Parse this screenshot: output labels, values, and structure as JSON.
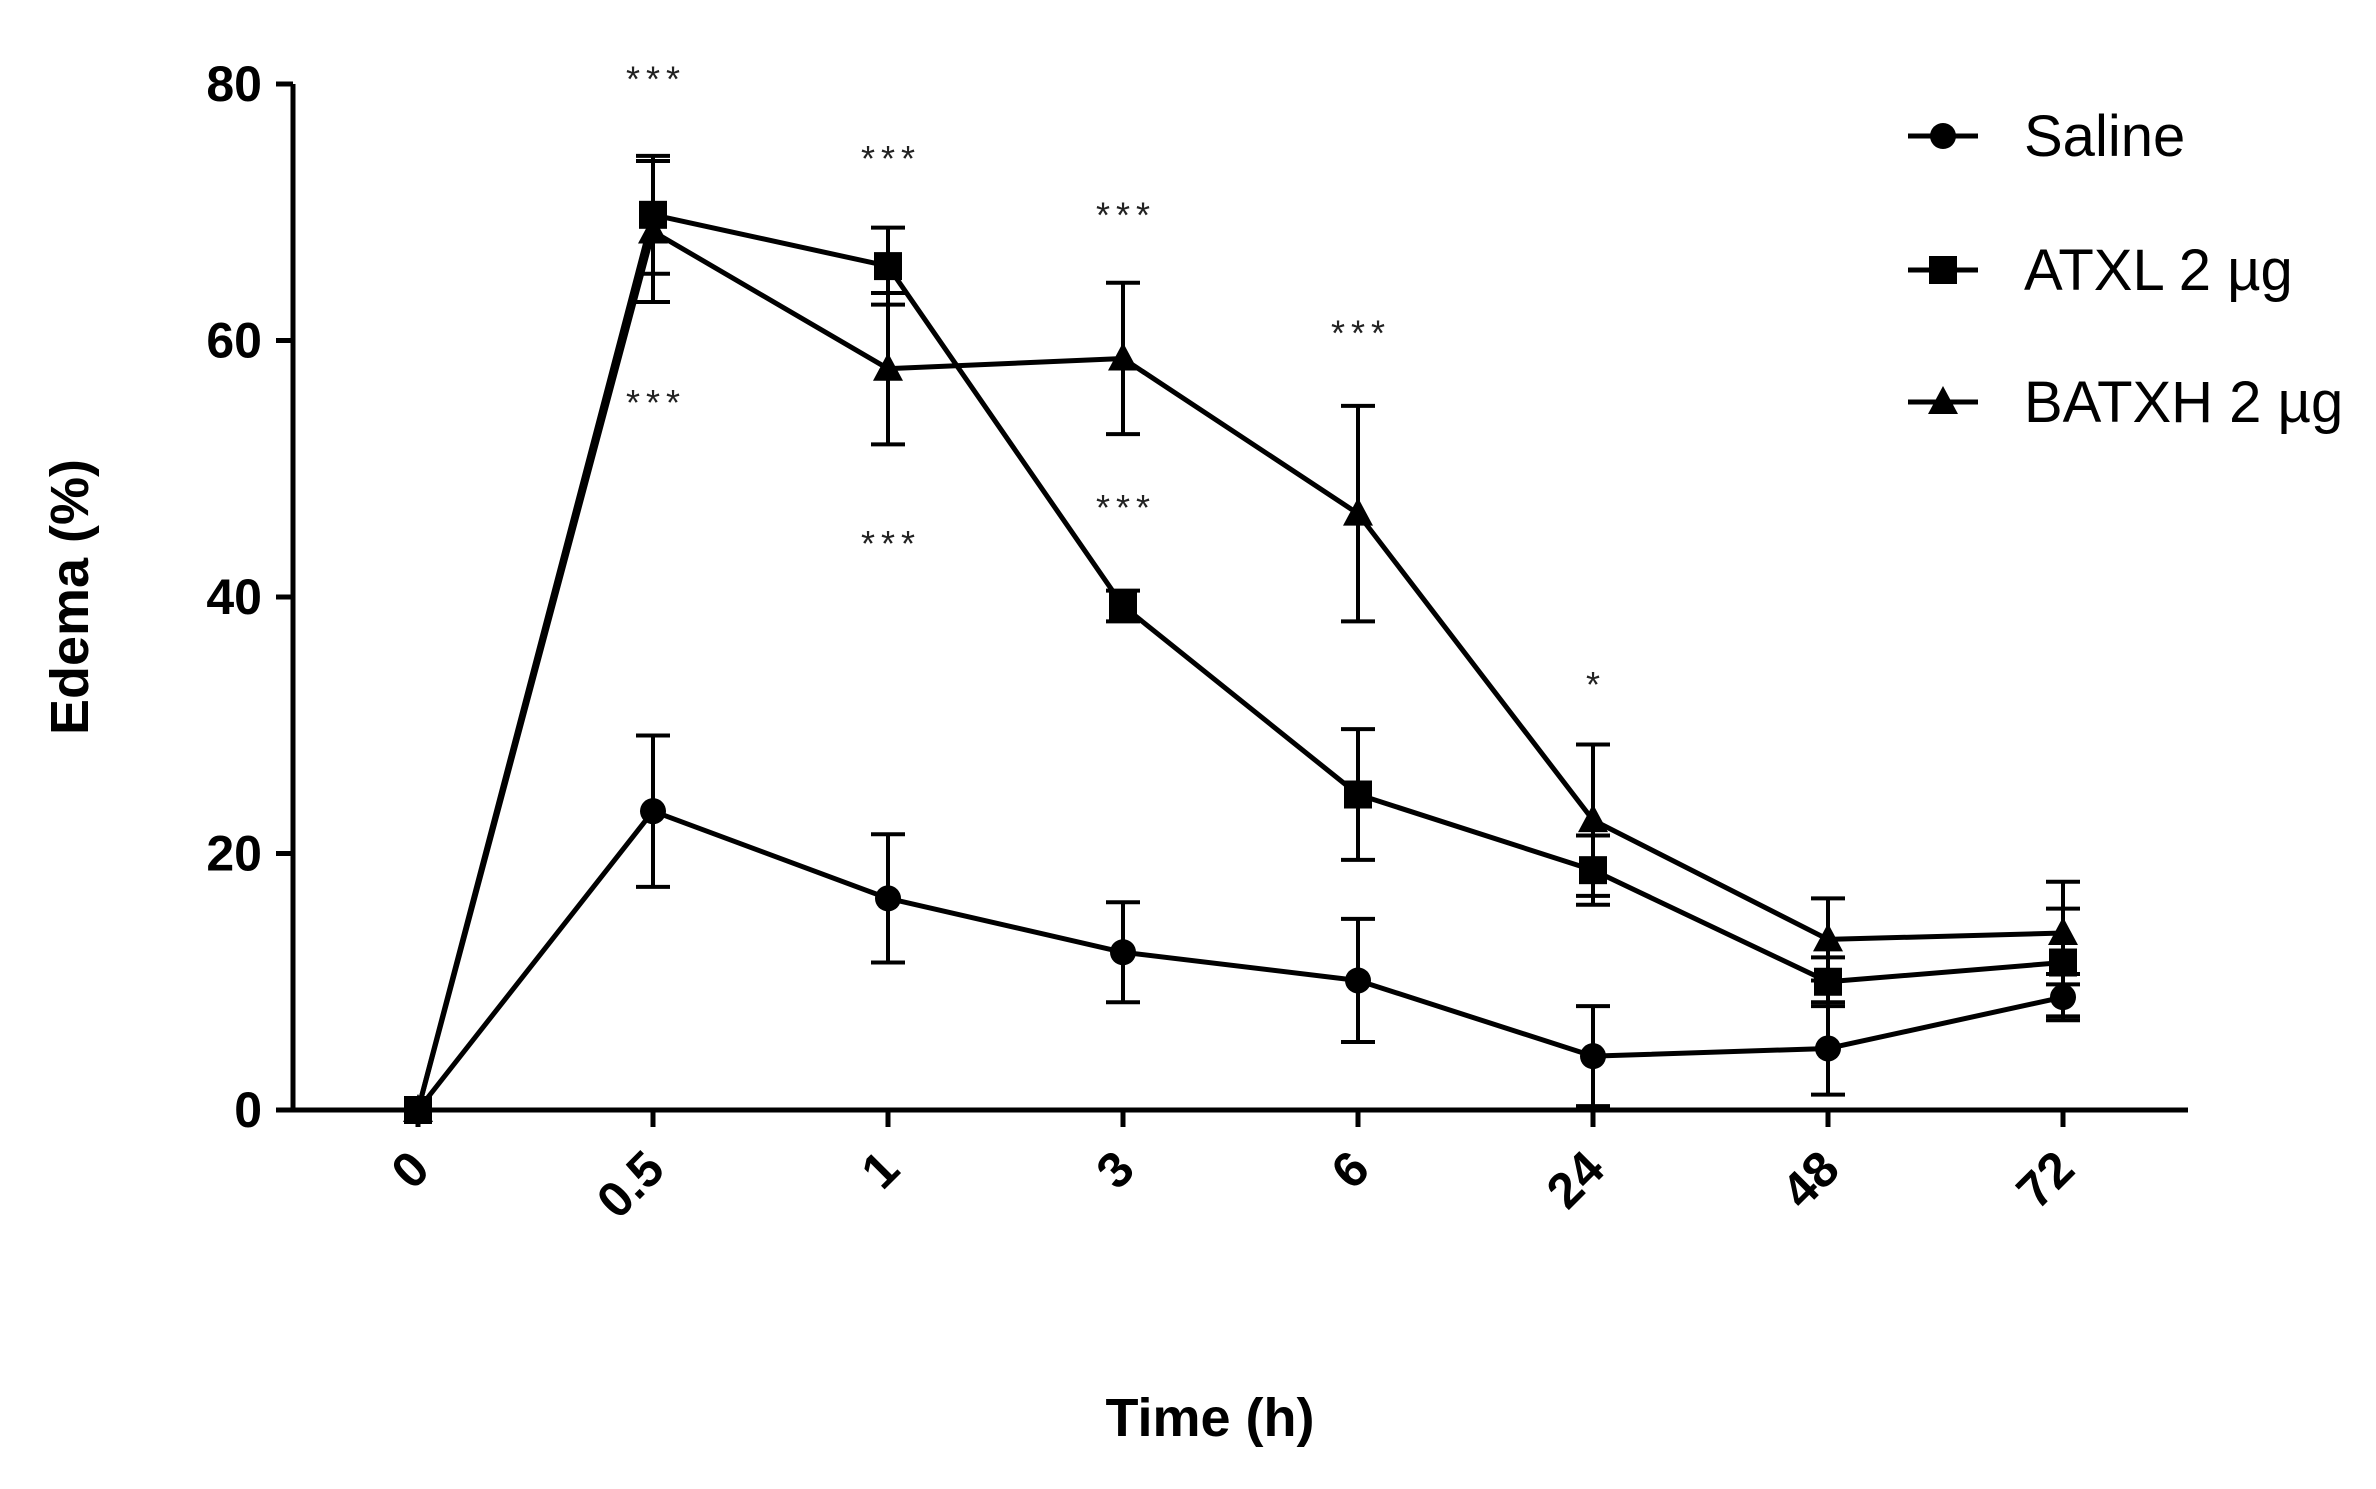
{
  "chart_data": {
    "type": "line",
    "title": "",
    "xlabel": "Time (h)",
    "ylabel": "Edema (%)",
    "categories": [
      "0",
      "0.5",
      "1",
      "3",
      "6",
      "24",
      "48",
      "72"
    ],
    "ylim": [
      0,
      80
    ],
    "yticks": [
      0,
      20,
      40,
      60,
      80
    ],
    "grid": false,
    "legend_position": "top-right",
    "series": [
      {
        "name": "Saline",
        "marker": "circle",
        "values": [
          0,
          23.3,
          16.5,
          12.3,
          10.1,
          4.2,
          4.8,
          8.8
        ],
        "errors": [
          0,
          5.9,
          5.0,
          3.9,
          4.8,
          3.9,
          3.6,
          1.8
        ]
      },
      {
        "name": "ATXL 2 µg",
        "marker": "square",
        "values": [
          0,
          69.8,
          65.8,
          39.3,
          24.6,
          18.7,
          10.0,
          11.5
        ],
        "errors": [
          0,
          4.6,
          3.0,
          1.2,
          5.1,
          2.7,
          1.9,
          4.2
        ]
      },
      {
        "name": "BATXH 2 µg",
        "marker": "triangle",
        "values": [
          0,
          68.5,
          57.8,
          58.6,
          46.5,
          22.6,
          13.3,
          13.8
        ],
        "errors": [
          0,
          5.5,
          5.9,
          5.9,
          8.4,
          5.9,
          3.2,
          4.0
        ]
      }
    ],
    "annotations": [
      {
        "text": "***",
        "category": "0.5",
        "y": 80.5
      },
      {
        "text": "***",
        "category": "0.5",
        "y": 55.3
      },
      {
        "text": "***",
        "category": "1",
        "y": 74.3
      },
      {
        "text": "***",
        "category": "1",
        "y": 44.3
      },
      {
        "text": "***",
        "category": "3",
        "y": 69.9
      },
      {
        "text": "***",
        "category": "3",
        "y": 47.1
      },
      {
        "text": "***",
        "category": "6",
        "y": 60.7
      },
      {
        "text": "*",
        "category": "24",
        "y": 33.3
      }
    ]
  }
}
